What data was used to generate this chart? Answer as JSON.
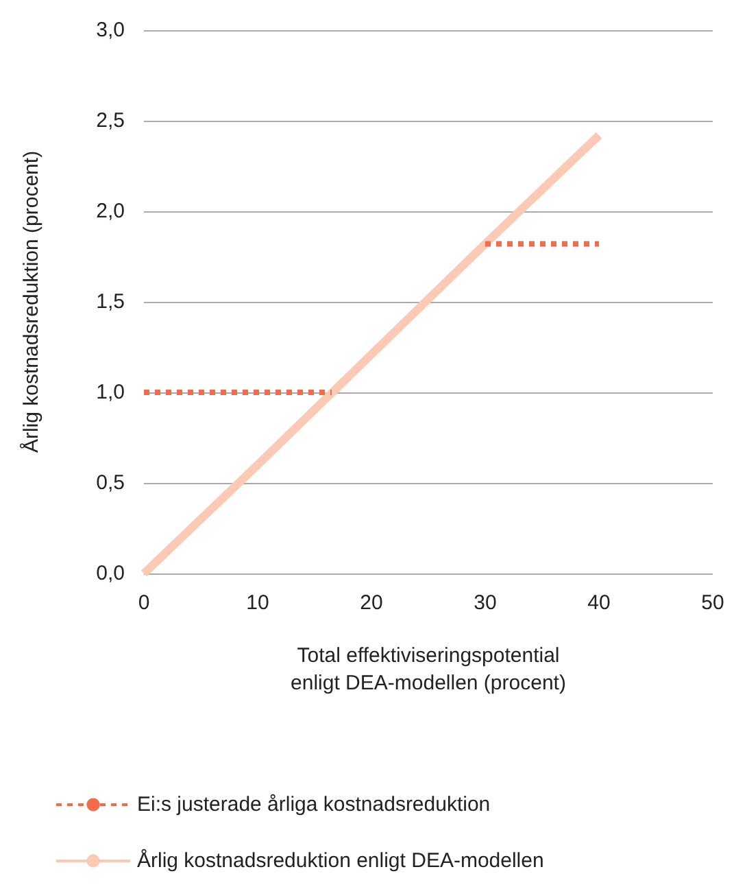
{
  "chart_data": {
    "type": "line",
    "xlabel": "Total effektiviseringspotential\nenligt DEA-modellen (procent)",
    "ylabel": "Årlig kostnadsreduktion (procent)",
    "xlim": [
      0,
      50
    ],
    "xticks": [
      0,
      10,
      20,
      30,
      40,
      50
    ],
    "ylim": [
      0,
      3
    ],
    "yticks": [
      {
        "value": 0,
        "label": "0,0"
      },
      {
        "value": 0.5,
        "label": "0,5"
      },
      {
        "value": 1,
        "label": "1,0"
      },
      {
        "value": 1.5,
        "label": "1,5"
      },
      {
        "value": 2,
        "label": "2,0"
      },
      {
        "value": 2.5,
        "label": "2,5"
      },
      {
        "value": 3,
        "label": "3,0"
      }
    ],
    "grid": "y",
    "legend": "bottom left",
    "marker": "none",
    "series": [
      {
        "name": "Ei:s justerade årliga kostnadsreduktion",
        "color": "#f26b4a",
        "line_style": "dotted",
        "x": [
          0,
          16.5,
          23,
          30,
          40
        ],
        "values": [
          1.0,
          1.0,
          null,
          1.82,
          1.82
        ]
      },
      {
        "name": "Årlig kostnadsreduktion enligt DEA-modellen",
        "color": "#fbc9b4",
        "line_style": "solid",
        "x": [
          0,
          10,
          20,
          30,
          40
        ],
        "values": [
          0,
          0.6,
          1.21,
          1.82,
          2.42
        ]
      }
    ]
  }
}
